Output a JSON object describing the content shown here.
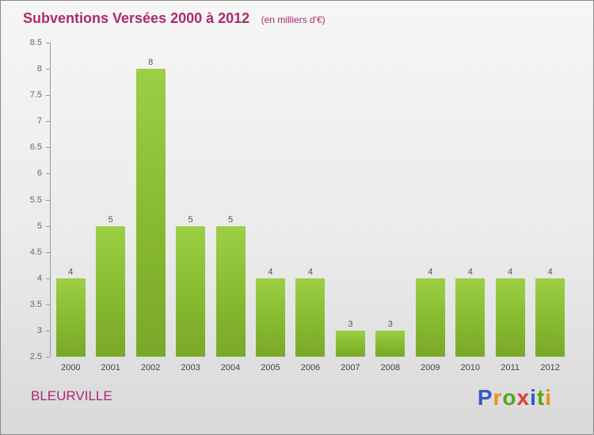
{
  "header": {
    "title": "Subventions Versées 2000 à 2012",
    "subtitle": "(en milliers d'€)"
  },
  "footer": {
    "location": "BLEURVILLE",
    "logo_letters": [
      {
        "ch": "P",
        "color": "#3558c8"
      },
      {
        "ch": "r",
        "color": "#ef8b1f"
      },
      {
        "ch": "o",
        "color": "#58a618"
      },
      {
        "ch": "x",
        "color": "#e03c2f"
      },
      {
        "ch": "i",
        "color": "#3558c8"
      },
      {
        "ch": "t",
        "color": "#58a618"
      },
      {
        "ch": "i",
        "color": "#ef8b1f"
      }
    ]
  },
  "colors": {
    "title_text": "#ab2a6b",
    "bar_fill": "#86b82f",
    "axis_line": "#9a9a9a",
    "tick_text": "#666666",
    "value_text": "#555555",
    "background_top": "#f6f6f6",
    "background_bottom": "#d9d9d9"
  },
  "chart_data": {
    "type": "bar",
    "title": "Subventions Versées 2000 à 2012",
    "subtitle": "(en milliers d'€)",
    "categories": [
      "2000",
      "2001",
      "2002",
      "2003",
      "2004",
      "2005",
      "2006",
      "2007",
      "2008",
      "2009",
      "2010",
      "2011",
      "2012"
    ],
    "values": [
      4,
      5,
      8,
      5,
      5,
      4,
      4,
      3,
      3,
      4,
      4,
      4,
      4
    ],
    "xlabel": "",
    "ylabel": "",
    "ylim": [
      2.5,
      8.5
    ],
    "ytick_step": 0.5,
    "ytick_labels": [
      "2.5",
      "3",
      "3.5",
      "4",
      "4.5",
      "5",
      "5.5",
      "6",
      "6.5",
      "7",
      "7.5",
      "8",
      "8.5"
    ],
    "grid": false,
    "legend": false,
    "value_labels_shown": true
  }
}
